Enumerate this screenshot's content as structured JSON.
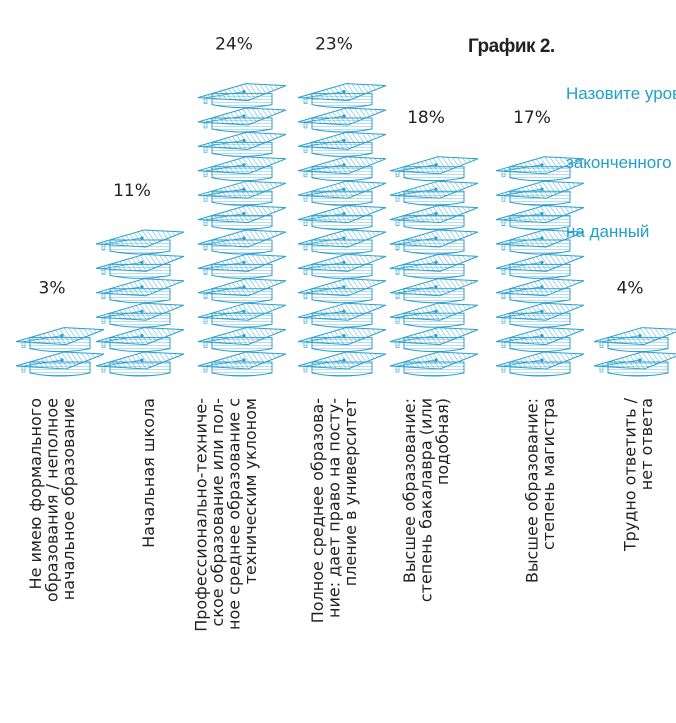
{
  "title": "График 2.",
  "subtitle_lines": [
    "Назовите уровень",
    "законченного",
    "на данный"
  ],
  "colors": {
    "cap_stroke": "#2a9fce",
    "text": "#222222",
    "subtitle": "#1fa0c8"
  },
  "chart_data": {
    "type": "bar",
    "title": "График 2.",
    "value_suffix": "%",
    "categories": [
      "Не имею формального образования / неполное начальное образование",
      "Начальная школа",
      "Профессионально-техническое образование или полное среднее образование с техническим уклоном",
      "Полное среднее образование: дает право на поступление в университет",
      "Высшее образование: степень бакалавра (или подобная)",
      "Высшее образование: степень магистра",
      "Трудно ответить / нет ответа"
    ],
    "category_lines": [
      [
        "Не имею формального",
        "образования / неполное",
        "начальное образование"
      ],
      [
        "Начальная школа"
      ],
      [
        "Профессионально-техниче-",
        "ское образование или пол-",
        "ное среднее образование с",
        "техническим уклоном"
      ],
      [
        "Полное среднее образова-",
        "ние: дает право на посту-",
        "пление в университет"
      ],
      [
        "Высшее образование:",
        "степень бакалавра (или",
        "подобная)"
      ],
      [
        "Высшее образование:",
        "степень магистра"
      ],
      [
        "Трудно ответить /",
        "нет ответа"
      ]
    ],
    "values": [
      3,
      11,
      24,
      23,
      18,
      17,
      4
    ],
    "value_labels": [
      "3%",
      "11%",
      "24%",
      "23%",
      "18%",
      "17%",
      "4%"
    ]
  }
}
